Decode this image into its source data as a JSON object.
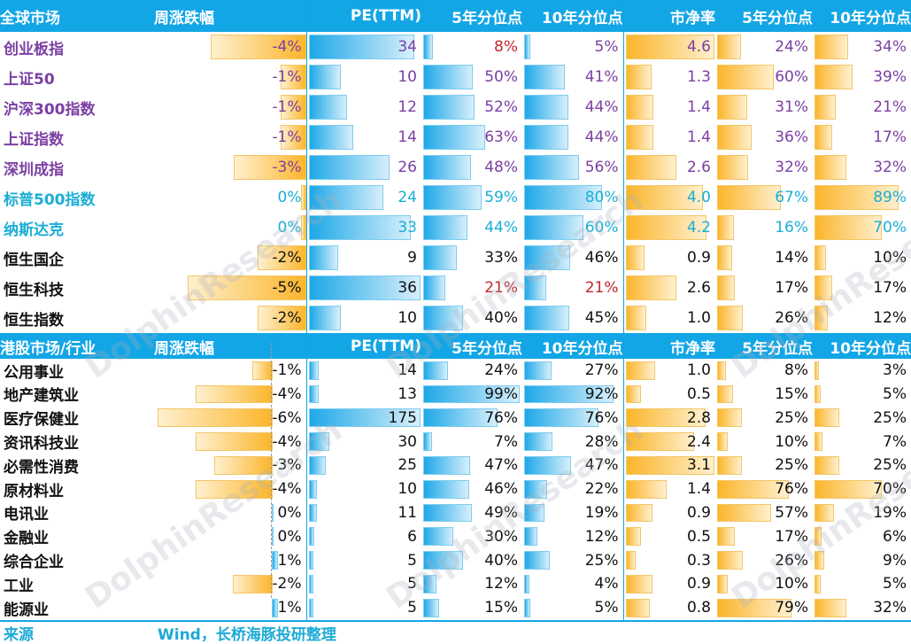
{
  "headers": {
    "global": [
      "全球市场",
      "周涨跌幅",
      "PE(TTM)",
      "5年分位点",
      "10年分位点",
      "市净率",
      "5年分位点",
      "10年分位点"
    ],
    "hk": [
      "港股市场/行业",
      "周涨跌幅",
      "PE(TTM)",
      "5年分位点",
      "10年分位点",
      "市净率",
      "5年分位点",
      "10年分位点"
    ]
  },
  "colors": {
    "header_bg": "#13a6e6",
    "purple_name": "#7b3fa3",
    "teal_name": "#1aaed6",
    "red_value": "#c0282d",
    "black": "#111111"
  },
  "footer": {
    "label": "来源",
    "text": "Wind，长桥海豚投研整理"
  },
  "watermark": "DolphinResearch",
  "chart_data": {
    "type": "table",
    "sections": [
      {
        "title": "全球市场",
        "rows": [
          {
            "name": "创业板指",
            "color": "purple",
            "chg": "-4%",
            "chg_v": -4,
            "pe": "34",
            "pe_v": 34,
            "pe5": "8%",
            "pe5_v": 8,
            "pe5_red": true,
            "pe10": "5%",
            "pe10_v": 5,
            "pb": "4.6",
            "pb_v": 4.6,
            "pb5": "24%",
            "pb5_v": 24,
            "pb10": "34%",
            "pb10_v": 34
          },
          {
            "name": "上证50",
            "color": "purple",
            "chg": "-1%",
            "chg_v": -1,
            "pe": "10",
            "pe_v": 10,
            "pe5": "50%",
            "pe5_v": 50,
            "pe10": "41%",
            "pe10_v": 41,
            "pb": "1.3",
            "pb_v": 1.3,
            "pb5": "60%",
            "pb5_v": 60,
            "pb10": "39%",
            "pb10_v": 39
          },
          {
            "name": "沪深300指数",
            "color": "purple",
            "chg": "-1%",
            "chg_v": -1,
            "pe": "12",
            "pe_v": 12,
            "pe5": "52%",
            "pe5_v": 52,
            "pe10": "44%",
            "pe10_v": 44,
            "pb": "1.4",
            "pb_v": 1.4,
            "pb5": "31%",
            "pb5_v": 31,
            "pb10": "21%",
            "pb10_v": 21
          },
          {
            "name": "上证指数",
            "color": "purple",
            "chg": "-1%",
            "chg_v": -1,
            "pe": "14",
            "pe_v": 14,
            "pe5": "63%",
            "pe5_v": 63,
            "pe10": "44%",
            "pe10_v": 44,
            "pb": "1.4",
            "pb_v": 1.4,
            "pb5": "36%",
            "pb5_v": 36,
            "pb10": "17%",
            "pb10_v": 17
          },
          {
            "name": "深圳成指",
            "color": "purple",
            "chg": "-3%",
            "chg_v": -3,
            "pe": "26",
            "pe_v": 26,
            "pe5": "48%",
            "pe5_v": 48,
            "pe10": "56%",
            "pe10_v": 56,
            "pb": "2.6",
            "pb_v": 2.6,
            "pb5": "32%",
            "pb5_v": 32,
            "pb10": "32%",
            "pb10_v": 32
          },
          {
            "name": "标普500指数",
            "color": "teal",
            "chg": "0%",
            "chg_v": 0,
            "pe": "24",
            "pe_v": 24,
            "pe5": "59%",
            "pe5_v": 59,
            "pe10": "80%",
            "pe10_v": 80,
            "pb": "4.0",
            "pb_v": 4.0,
            "pb5": "67%",
            "pb5_v": 67,
            "pb10": "89%",
            "pb10_v": 89
          },
          {
            "name": "纳斯达克",
            "color": "teal",
            "chg": "0%",
            "chg_v": 0,
            "pe": "33",
            "pe_v": 33,
            "pe5": "44%",
            "pe5_v": 44,
            "pe10": "60%",
            "pe10_v": 60,
            "pb": "4.2",
            "pb_v": 4.2,
            "pb5": "16%",
            "pb5_v": 16,
            "pb10": "70%",
            "pb10_v": 70
          },
          {
            "name": "恒生国企",
            "color": "black",
            "chg": "-2%",
            "chg_v": -2,
            "pe": "9",
            "pe_v": 9,
            "pe5": "33%",
            "pe5_v": 33,
            "pe10": "46%",
            "pe10_v": 46,
            "pb": "0.9",
            "pb_v": 0.9,
            "pb5": "14%",
            "pb5_v": 14,
            "pb10": "10%",
            "pb10_v": 10
          },
          {
            "name": "恒生科技",
            "color": "black",
            "chg": "-5%",
            "chg_v": -5,
            "pe": "36",
            "pe_v": 36,
            "pe5": "21%",
            "pe5_v": 21,
            "pe5_red": true,
            "pe10": "21%",
            "pe10_v": 21,
            "pe10_red": true,
            "pb": "2.6",
            "pb_v": 2.6,
            "pb5": "17%",
            "pb5_v": 17,
            "pb10": "17%",
            "pb10_v": 17
          },
          {
            "name": "恒生指数",
            "color": "black",
            "chg": "-2%",
            "chg_v": -2,
            "pe": "10",
            "pe_v": 10,
            "pe5": "40%",
            "pe5_v": 40,
            "pe10": "45%",
            "pe10_v": 45,
            "pb": "1.0",
            "pb_v": 1.0,
            "pb5": "26%",
            "pb5_v": 26,
            "pb10": "12%",
            "pb10_v": 12
          }
        ]
      },
      {
        "title": "港股市场/行业",
        "rows": [
          {
            "name": "公用事业",
            "color": "black",
            "chg": "-1%",
            "chg_v": -1,
            "pe": "14",
            "pe_v": 14,
            "pe5": "24%",
            "pe5_v": 24,
            "pe10": "27%",
            "pe10_v": 27,
            "pb": "1.0",
            "pb_v": 1.0,
            "pb5": "8%",
            "pb5_v": 8,
            "pb10": "3%",
            "pb10_v": 3
          },
          {
            "name": "地产建筑业",
            "color": "black",
            "chg": "-4%",
            "chg_v": -4,
            "pe": "13",
            "pe_v": 13,
            "pe5": "99%",
            "pe5_v": 99,
            "pe10": "92%",
            "pe10_v": 92,
            "pb": "0.5",
            "pb_v": 0.5,
            "pb5": "15%",
            "pb5_v": 15,
            "pb10": "5%",
            "pb10_v": 5
          },
          {
            "name": "医疗保健业",
            "color": "black",
            "chg": "-6%",
            "chg_v": -6,
            "pe": "175",
            "pe_v": 175,
            "pe5": "76%",
            "pe5_v": 76,
            "pe10": "76%",
            "pe10_v": 76,
            "pb": "2.8",
            "pb_v": 2.8,
            "pb5": "25%",
            "pb5_v": 25,
            "pb10": "25%",
            "pb10_v": 25
          },
          {
            "name": "资讯科技业",
            "color": "black",
            "chg": "-4%",
            "chg_v": -4,
            "pe": "30",
            "pe_v": 30,
            "pe5": "7%",
            "pe5_v": 7,
            "pe10": "28%",
            "pe10_v": 28,
            "pb": "2.4",
            "pb_v": 2.4,
            "pb5": "10%",
            "pb5_v": 10,
            "pb10": "7%",
            "pb10_v": 7
          },
          {
            "name": "必需性消费",
            "color": "black",
            "chg": "-3%",
            "chg_v": -3,
            "pe": "25",
            "pe_v": 25,
            "pe5": "47%",
            "pe5_v": 47,
            "pe10": "47%",
            "pe10_v": 47,
            "pb": "3.1",
            "pb_v": 3.1,
            "pb5": "25%",
            "pb5_v": 25,
            "pb10": "25%",
            "pb10_v": 25
          },
          {
            "name": "原材料业",
            "color": "black",
            "chg": "-4%",
            "chg_v": -4,
            "pe": "10",
            "pe_v": 10,
            "pe5": "46%",
            "pe5_v": 46,
            "pe10": "22%",
            "pe10_v": 22,
            "pb": "1.4",
            "pb_v": 1.4,
            "pb5": "76%",
            "pb5_v": 76,
            "pb10": "70%",
            "pb10_v": 70
          },
          {
            "name": "电讯业",
            "color": "black",
            "chg": "0%",
            "chg_v": 0,
            "pe": "11",
            "pe_v": 11,
            "pe5": "49%",
            "pe5_v": 49,
            "pe10": "19%",
            "pe10_v": 19,
            "pb": "0.9",
            "pb_v": 0.9,
            "pb5": "57%",
            "pb5_v": 57,
            "pb10": "19%",
            "pb10_v": 19
          },
          {
            "name": "金融业",
            "color": "black",
            "chg": "0%",
            "chg_v": 0,
            "pe": "6",
            "pe_v": 6,
            "pe5": "30%",
            "pe5_v": 30,
            "pe10": "12%",
            "pe10_v": 12,
            "pb": "0.5",
            "pb_v": 0.5,
            "pb5": "17%",
            "pb5_v": 17,
            "pb10": "6%",
            "pb10_v": 6
          },
          {
            "name": "综合企业",
            "color": "black",
            "chg": "1%",
            "chg_v": 1,
            "pe": "5",
            "pe_v": 5,
            "pe5": "40%",
            "pe5_v": 40,
            "pe10": "25%",
            "pe10_v": 25,
            "pb": "0.3",
            "pb_v": 0.3,
            "pb5": "26%",
            "pb5_v": 26,
            "pb10": "9%",
            "pb10_v": 9
          },
          {
            "name": "工业",
            "color": "black",
            "chg": "-2%",
            "chg_v": -2,
            "pe": "5",
            "pe_v": 5,
            "pe5": "12%",
            "pe5_v": 12,
            "pe10": "4%",
            "pe10_v": 4,
            "pb": "0.9",
            "pb_v": 0.9,
            "pb5": "10%",
            "pb5_v": 10,
            "pb10": "5%",
            "pb10_v": 5
          },
          {
            "name": "能源业",
            "color": "black",
            "chg": "1%",
            "chg_v": 1,
            "pe": "5",
            "pe_v": 5,
            "pe5": "15%",
            "pe5_v": 15,
            "pe10": "5%",
            "pe10_v": 5,
            "pb": "0.8",
            "pb_v": 0.8,
            "pb5": "79%",
            "pb5_v": 79,
            "pb10": "32%",
            "pb10_v": 32
          }
        ]
      }
    ]
  }
}
